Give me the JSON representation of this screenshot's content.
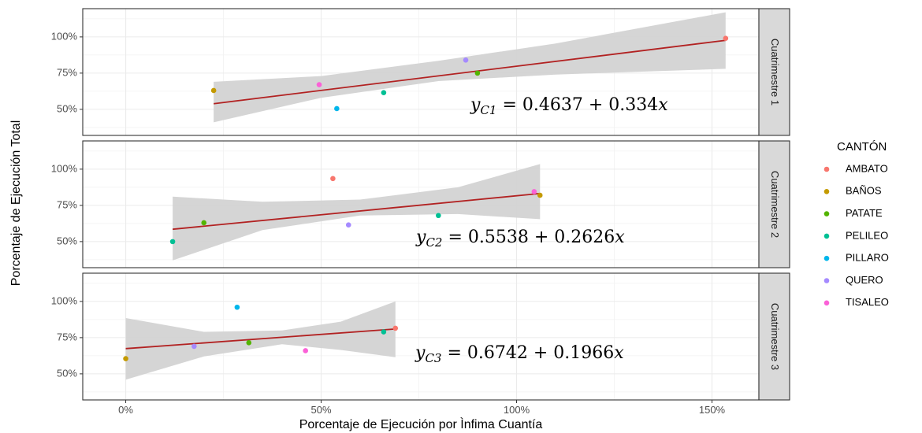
{
  "chart_data": {
    "type": "scatter",
    "xlabel": "Porcentaje de Ejecución por Ìnfima Cuantía",
    "ylabel": "Porcentaje de Ejecución Total",
    "xlim": [
      -0.11,
      1.62
    ],
    "ylim": [
      0.32,
      1.195
    ],
    "x_ticks": [
      0,
      0.5,
      1.0,
      1.5
    ],
    "x_tick_labels": [
      "0%",
      "50%",
      "100%",
      "150%"
    ],
    "y_ticks": [
      0.5,
      0.75,
      1.0
    ],
    "y_tick_labels": [
      "50%",
      "75%",
      "100%"
    ],
    "grid": true,
    "legend": {
      "title": "CANTÓN",
      "placement": "right",
      "entries": [
        {
          "name": "AMBATO",
          "color": "#F8766D"
        },
        {
          "name": "BAÑOS",
          "color": "#C49A00"
        },
        {
          "name": "PATATE",
          "color": "#53B400"
        },
        {
          "name": "PELILEO",
          "color": "#00C094"
        },
        {
          "name": "PILLARO",
          "color": "#00B6EB"
        },
        {
          "name": "QUERO",
          "color": "#A58AFF"
        },
        {
          "name": "TISALEO",
          "color": "#FB61D7"
        }
      ]
    },
    "fit_color": "#B22222",
    "band_color": "#D3D3D3",
    "panels": [
      {
        "strip": "Cuatrimestre 1",
        "equation": "y_{C1} = 0.4637 + 0.334x",
        "fit": {
          "intercept": 0.4637,
          "slope": 0.334,
          "x_range": [
            0.225,
            1.535
          ]
        },
        "band": {
          "x": [
            0.225,
            0.5,
            0.8,
            1.1,
            1.535
          ],
          "lower": [
            0.41,
            0.58,
            0.695,
            0.74,
            0.78
          ],
          "upper": [
            0.69,
            0.73,
            0.835,
            0.955,
            1.17
          ]
        },
        "points": [
          {
            "canton": "AMBATO",
            "x": 1.535,
            "y": 0.99
          },
          {
            "canton": "BAÑOS",
            "x": 0.225,
            "y": 0.63
          },
          {
            "canton": "PATATE",
            "x": 0.9,
            "y": 0.75
          },
          {
            "canton": "PELILEO",
            "x": 0.66,
            "y": 0.615
          },
          {
            "canton": "PILLARO",
            "x": 0.54,
            "y": 0.505
          },
          {
            "canton": "QUERO",
            "x": 0.87,
            "y": 0.84
          },
          {
            "canton": "TISALEO",
            "x": 0.495,
            "y": 0.67
          }
        ]
      },
      {
        "strip": "Cuatrimestre 2",
        "equation": "y_{C2} = 0.5538 + 0.2626x",
        "fit": {
          "intercept": 0.5538,
          "slope": 0.2626,
          "x_range": [
            0.12,
            1.06
          ]
        },
        "band": {
          "x": [
            0.12,
            0.35,
            0.6,
            0.85,
            1.06
          ],
          "lower": [
            0.37,
            0.58,
            0.68,
            0.69,
            0.655
          ],
          "upper": [
            0.81,
            0.775,
            0.79,
            0.875,
            1.035
          ]
        },
        "points": [
          {
            "canton": "AMBATO",
            "x": 0.53,
            "y": 0.935
          },
          {
            "canton": "BAÑOS",
            "x": 1.06,
            "y": 0.82
          },
          {
            "canton": "PATATE",
            "x": 0.2,
            "y": 0.63
          },
          {
            "canton": "PELILEO",
            "x": 0.12,
            "y": 0.5
          },
          {
            "canton": "PELILEO",
            "x": 0.8,
            "y": 0.68
          },
          {
            "canton": "QUERO",
            "x": 0.57,
            "y": 0.615
          },
          {
            "canton": "TISALEO",
            "x": 1.045,
            "y": 0.845
          }
        ]
      },
      {
        "strip": "Cuatrimestre 3",
        "equation": "y_{C3} = 0.6742 + 0.1966x",
        "fit": {
          "intercept": 0.6742,
          "slope": 0.1966,
          "x_range": [
            0.0,
            0.69
          ]
        },
        "band": {
          "x": [
            0.0,
            0.2,
            0.4,
            0.55,
            0.69
          ],
          "lower": [
            0.46,
            0.62,
            0.705,
            0.665,
            0.615
          ],
          "upper": [
            0.885,
            0.79,
            0.8,
            0.86,
            1.0
          ]
        },
        "points": [
          {
            "canton": "AMBATO",
            "x": 0.69,
            "y": 0.815
          },
          {
            "canton": "BAÑOS",
            "x": 0.0,
            "y": 0.605
          },
          {
            "canton": "PATATE",
            "x": 0.315,
            "y": 0.715
          },
          {
            "canton": "PELILEO",
            "x": 0.66,
            "y": 0.79
          },
          {
            "canton": "PILLARO",
            "x": 0.285,
            "y": 0.96
          },
          {
            "canton": "QUERO",
            "x": 0.175,
            "y": 0.69
          },
          {
            "canton": "TISALEO",
            "x": 0.46,
            "y": 0.66
          }
        ]
      }
    ]
  }
}
